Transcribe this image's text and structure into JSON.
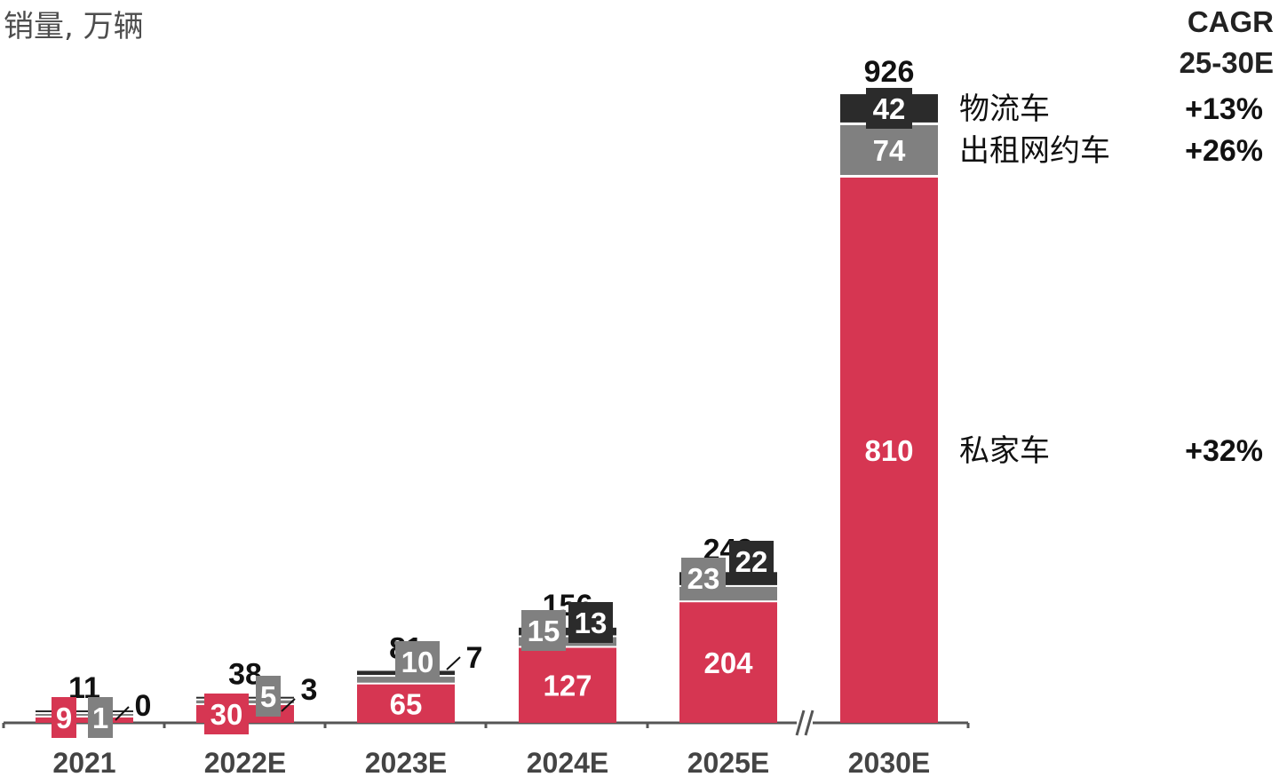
{
  "chart_data": {
    "type": "bar",
    "stacked": true,
    "unit_label": "销量, 万辆",
    "categories": [
      "2021",
      "2022E",
      "2023E",
      "2024E",
      "2025E",
      "2030E"
    ],
    "series": [
      {
        "name": "私家车",
        "values": [
          9,
          30,
          65,
          127,
          204,
          810
        ],
        "color": "#d63652",
        "cagr": "+32%"
      },
      {
        "name": "出租网约车",
        "values": [
          1,
          5,
          10,
          15,
          23,
          74
        ],
        "color": "#808080",
        "cagr": "+26%"
      },
      {
        "name": "物流车",
        "values": [
          0,
          3,
          7,
          13,
          22,
          42
        ],
        "color": "#2b2b2b",
        "cagr": "+13%"
      }
    ],
    "totals": [
      11,
      38,
      81,
      156,
      249,
      926
    ],
    "cagr_header": [
      "CAGR",
      "25-30E"
    ],
    "axis_break_before": "2030E",
    "grid": false,
    "legend": "right"
  }
}
